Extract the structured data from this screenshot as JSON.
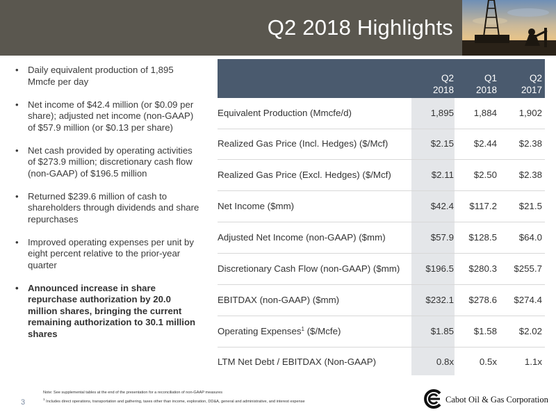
{
  "header": {
    "title": "Q2 2018 Highlights"
  },
  "bullets": [
    {
      "text": "Daily equivalent production of 1,895 Mmcfe per day",
      "bold": false
    },
    {
      "text": "Net income of $42.4 million (or $0.09 per share); adjusted net income (non-GAAP) of $57.9 million (or $0.13 per share)",
      "bold": false
    },
    {
      "text": "Net cash provided by operating activities of $273.9 million; discretionary cash flow (non-GAAP) of $196.5 million",
      "bold": false
    },
    {
      "text": "Returned $239.6 million of cash to shareholders through dividends and share repurchases",
      "bold": false
    },
    {
      "text": "Improved operating expenses per unit by eight percent relative to the prior-year quarter",
      "bold": false
    },
    {
      "text": "Announced increase in share repurchase authorization by 20.0 million shares, bringing the current remaining authorization to 30.1 million shares",
      "bold": true
    }
  ],
  "bullet_symbol": "•",
  "table": {
    "columns": [
      {
        "line1": "Q2",
        "line2": "2018"
      },
      {
        "line1": "Q1",
        "line2": "2018"
      },
      {
        "line1": "Q2",
        "line2": "2017"
      }
    ],
    "rows": [
      {
        "label": "Equivalent Production (Mmcfe/d)",
        "sup": "",
        "suffix": "",
        "values": [
          "1,895",
          "1,884",
          "1,902"
        ]
      },
      {
        "label": "Realized Gas Price (Incl. Hedges) ($/Mcf)",
        "sup": "",
        "suffix": "",
        "values": [
          "$2.15",
          "$2.44",
          "$2.38"
        ]
      },
      {
        "label": "Realized Gas Price (Excl. Hedges) ($/Mcf)",
        "sup": "",
        "suffix": "",
        "values": [
          "$2.11",
          "$2.50",
          "$2.38"
        ]
      },
      {
        "label": "Net Income ($mm)",
        "sup": "",
        "suffix": "",
        "values": [
          "$42.4",
          "$117.2",
          "$21.5"
        ]
      },
      {
        "label": "Adjusted Net Income (non-GAAP) ($mm)",
        "sup": "",
        "suffix": "",
        "values": [
          "$57.9",
          "$128.5",
          "$64.0"
        ]
      },
      {
        "label": "Discretionary Cash Flow (non-GAAP) ($mm)",
        "sup": "",
        "suffix": "",
        "values": [
          "$196.5",
          "$280.3",
          "$255.7"
        ]
      },
      {
        "label": "EBITDAX (non-GAAP) ($mm)",
        "sup": "",
        "suffix": "",
        "values": [
          "$232.1",
          "$278.6",
          "$274.4"
        ]
      },
      {
        "label": "Operating Expenses",
        "sup": "1",
        "suffix": " ($/Mcfe)",
        "values": [
          "$1.85",
          "$1.58",
          "$2.02"
        ]
      },
      {
        "label": "LTM Net Debt / EBITDAX (Non-GAAP)",
        "sup": "",
        "suffix": "",
        "values": [
          "0.8x",
          "0.5x",
          "1.1x"
        ]
      }
    ]
  },
  "footer": {
    "note": "Note: See supplemental tables at the end of the presentation for a reconciliation of non-GAAP measures",
    "footnote_mark": "1",
    "footnote": " Includes direct operations, transportation and gathering, taxes other than income, exploration, DD&A, general and administrative, and interest expense",
    "page_number": "3",
    "company": "Cabot Oil & Gas Corporation"
  },
  "colors": {
    "header_bg": "#5a574f",
    "table_header_bg": "#4a5a6e",
    "column_shade": "#e4e6e9"
  }
}
